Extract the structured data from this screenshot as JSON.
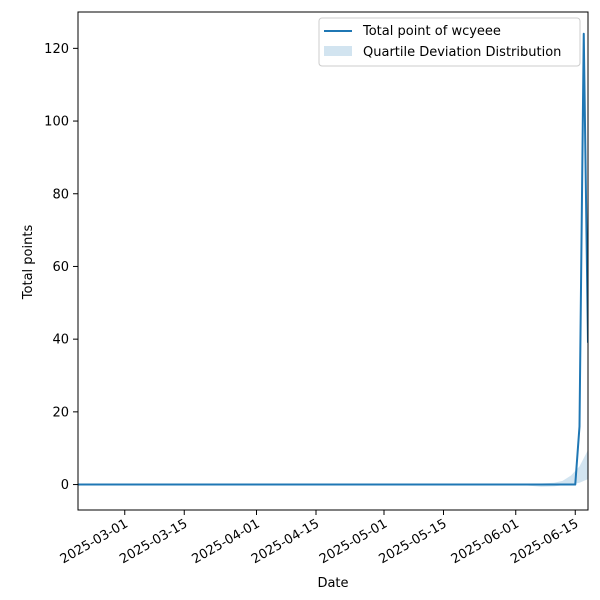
{
  "chart_data": {
    "type": "line",
    "xlabel": "Date",
    "ylabel": "Total points",
    "xlim": [
      "2025-02-18",
      "2025-06-18"
    ],
    "ylim": [
      -7,
      130
    ],
    "x_ticks": [
      "2025-03-01",
      "2025-03-15",
      "2025-04-01",
      "2025-04-15",
      "2025-05-01",
      "2025-05-15",
      "2025-06-01",
      "2025-06-15"
    ],
    "y_ticks": [
      0,
      20,
      40,
      60,
      80,
      100,
      120
    ],
    "legend_position": "top-right",
    "grid": false,
    "series": [
      {
        "name": "Total point of wcyeee",
        "type": "line",
        "color": "#1f77b4",
        "x": [
          "2025-02-18",
          "2025-06-01",
          "2025-06-10",
          "2025-06-14",
          "2025-06-15",
          "2025-06-16",
          "2025-06-17",
          "2025-06-18"
        ],
        "y": [
          0,
          0,
          0,
          0,
          0,
          16,
          124,
          39
        ]
      },
      {
        "name": "Quartile Deviation Distribution",
        "type": "band",
        "color": "#1f77b4",
        "x": [
          "2025-02-18",
          "2025-06-01",
          "2025-06-04",
          "2025-06-07",
          "2025-06-10",
          "2025-06-12",
          "2025-06-14",
          "2025-06-16",
          "2025-06-18"
        ],
        "low": [
          0,
          0,
          -0.3,
          -0.6,
          -0.5,
          -0.2,
          0,
          0.5,
          1.5
        ],
        "high": [
          0,
          0,
          0.1,
          0.3,
          0.5,
          1.0,
          2.5,
          5.0,
          9.5
        ]
      }
    ]
  }
}
